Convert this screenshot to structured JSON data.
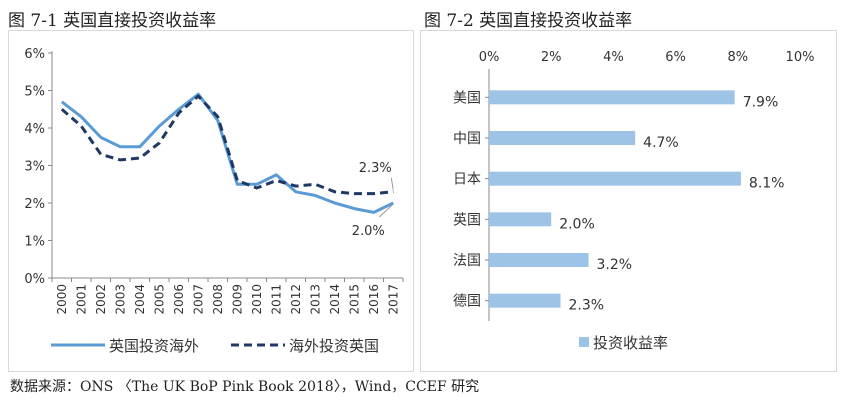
{
  "titles": {
    "left": "图 7-1  英国直接投资收益率",
    "right": "图 7-2  英国直接投资收益率"
  },
  "source": "数据来源：ONS 〈The UK BoP Pink Book 2018〉，Wind，CCEF 研究",
  "colors": {
    "line_solid": "#5b9bd5",
    "line_dashed": "#1f3864",
    "bar": "#9dc3e6"
  },
  "chart_data": [
    {
      "type": "line",
      "title": "图 7-1 英国直接投资收益率",
      "x": [
        "2000",
        "2001",
        "2002",
        "2003",
        "2004",
        "2005",
        "2006",
        "2007",
        "2008",
        "2009",
        "2010",
        "2011",
        "2012",
        "2013",
        "2014",
        "2015",
        "2016",
        "2017"
      ],
      "ylim": [
        0,
        6
      ],
      "yticks": [
        "0%",
        "1%",
        "2%",
        "3%",
        "4%",
        "5%",
        "6%"
      ],
      "series": [
        {
          "name": "英国投资海外",
          "style": "solid",
          "values": [
            4.7,
            4.3,
            3.75,
            3.5,
            3.5,
            4.05,
            4.5,
            4.9,
            4.2,
            2.5,
            2.5,
            2.75,
            2.3,
            2.2,
            2.0,
            1.85,
            1.75,
            2.0
          ]
        },
        {
          "name": "海外投资英国",
          "style": "dashed",
          "values": [
            4.5,
            4.05,
            3.3,
            3.15,
            3.2,
            3.6,
            4.4,
            4.85,
            4.3,
            2.6,
            2.4,
            2.6,
            2.45,
            2.5,
            2.3,
            2.25,
            2.25,
            2.3
          ]
        }
      ],
      "annotations": [
        {
          "text": "2.3%",
          "series": 1,
          "index": 17
        },
        {
          "text": "2.0%",
          "series": 0,
          "index": 17
        }
      ],
      "legend": "bottom"
    },
    {
      "type": "bar",
      "orientation": "horizontal",
      "title": "图 7-2 英国直接投资收益率",
      "categories": [
        "美国",
        "中国",
        "日本",
        "英国",
        "法国",
        "德国"
      ],
      "values": [
        7.9,
        4.7,
        8.1,
        2.0,
        3.2,
        2.3
      ],
      "labels": [
        "7.9%",
        "4.7%",
        "8.1%",
        "2.0%",
        "3.2%",
        "2.3%"
      ],
      "xlim": [
        0,
        10
      ],
      "xticks": [
        "0%",
        "2%",
        "4%",
        "6%",
        "8%",
        "10%"
      ],
      "series_name": "投资收益率",
      "legend": "bottom"
    }
  ]
}
